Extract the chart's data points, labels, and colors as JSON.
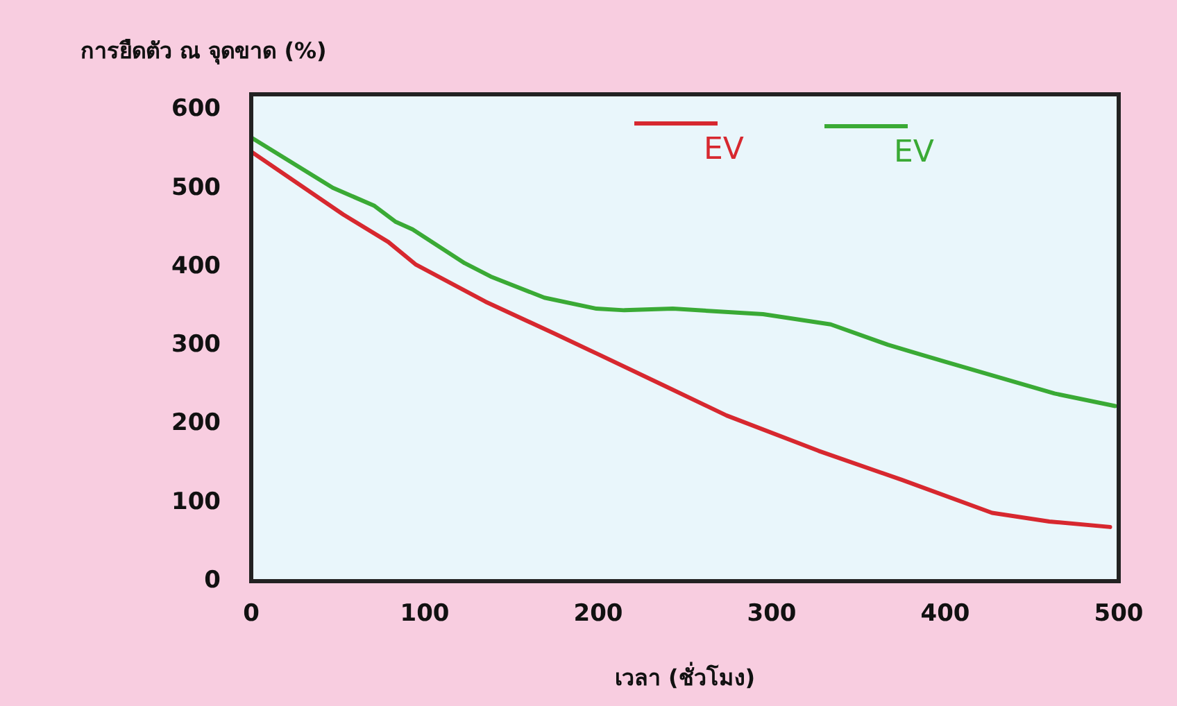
{
  "chart_data": {
    "type": "line",
    "ylabel": "การยืดตัว ณ จุดขาด (%)",
    "xlabel": "เวลา (ชั่วโมง)",
    "xlim": [
      0,
      500
    ],
    "xticks": [
      0,
      100,
      200,
      300,
      400,
      500
    ],
    "ylim": [
      0,
      620
    ],
    "yticks": [
      0,
      100,
      200,
      300,
      400,
      500,
      600
    ],
    "legend": "top right",
    "marker": "none",
    "line_style": "solid",
    "series": [
      {
        "name": "EV",
        "color": "#d7282f",
        "x": [
          0,
          53,
          79,
          95,
          135,
          175,
          199,
          239,
          274,
          327,
          375,
          427,
          460,
          495
        ],
        "values": [
          547,
          467,
          432,
          403,
          356,
          315,
          290,
          248,
          211,
          166,
          129,
          87,
          76,
          69
        ]
      },
      {
        "name": "EV",
        "color": "#3aaa35",
        "x": [
          0,
          47,
          71,
          83,
          93,
          123,
          138,
          169,
          199,
          215,
          243,
          295,
          334,
          367,
          399,
          463,
          498
        ],
        "values": [
          565,
          501,
          478,
          458,
          448,
          405,
          388,
          361,
          347,
          345,
          347,
          340,
          327,
          301,
          280,
          239,
          223
        ]
      }
    ]
  }
}
